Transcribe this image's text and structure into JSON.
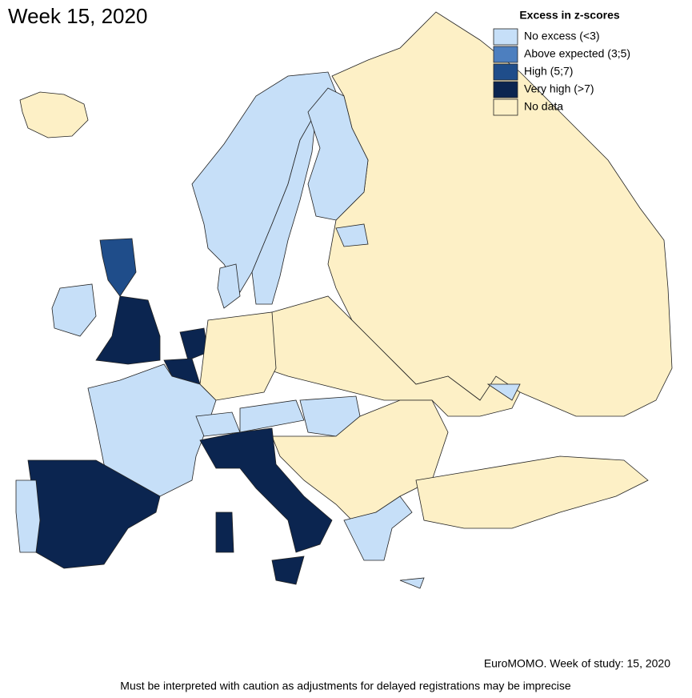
{
  "title": "Week 15, 2020",
  "legend": {
    "title": "Excess in z-scores",
    "items": [
      {
        "label": "No excess (<3)",
        "color": "#c6dff8"
      },
      {
        "label": "Above expected (3;5)",
        "color": "#4d7fbf"
      },
      {
        "label": "High (5;7)",
        "color": "#1f4d8a"
      },
      {
        "label": "Very high (>7)",
        "color": "#0b2550"
      },
      {
        "label": "No data",
        "color": "#fdf0c6"
      }
    ]
  },
  "footer": {
    "source": "EuroMOMO. Week of study: 15, 2020",
    "note": "Must be interpreted with caution as adjustments for delayed registrations may be imprecise"
  }
}
